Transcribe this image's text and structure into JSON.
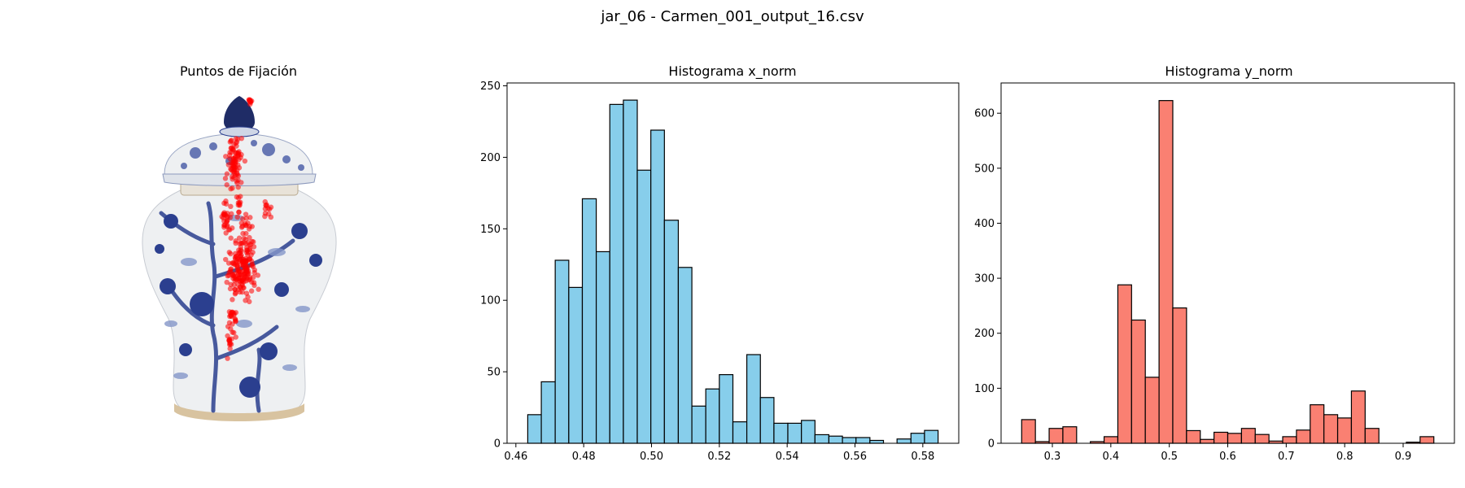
{
  "figure": {
    "suptitle": "jar_06 - Carmen_001_output_16.csv"
  },
  "fixation_panel": {
    "title": "Puntos de Fijación",
    "point_color": "#ff0000",
    "palette": {
      "porcelain": "#eef0f2",
      "cobalt": "#2b3f8f",
      "light_blue": "#8597c9"
    }
  },
  "chart_data": [
    {
      "type": "bar",
      "title": "Histograma x_norm",
      "xlabel": "",
      "ylabel": "",
      "color": "#87ceeb",
      "edgecolor": "#000000",
      "xlim": [
        0.4574,
        0.5906
      ],
      "ylim": [
        0,
        252
      ],
      "xticks": [
        0.46,
        0.48,
        0.5,
        0.52,
        0.54,
        0.56,
        0.58
      ],
      "xtick_labels": [
        "0.46",
        "0.48",
        "0.50",
        "0.52",
        "0.54",
        "0.56",
        "0.58"
      ],
      "yticks": [
        0,
        50,
        100,
        150,
        200,
        250
      ],
      "ytick_labels": [
        "0",
        "50",
        "100",
        "150",
        "200",
        "250"
      ],
      "bin_edges": [
        0.4635,
        0.4675,
        0.4716,
        0.4756,
        0.4796,
        0.4837,
        0.4877,
        0.4917,
        0.4958,
        0.4998,
        0.5038,
        0.5079,
        0.5119,
        0.516,
        0.52,
        0.524,
        0.5281,
        0.5321,
        0.5361,
        0.5402,
        0.5442,
        0.5482,
        0.5523,
        0.5563,
        0.5603,
        0.5644,
        0.5684,
        0.5724,
        0.5765,
        0.5805,
        0.5845
      ],
      "values": [
        20,
        43,
        128,
        109,
        171,
        134,
        237,
        240,
        191,
        219,
        156,
        123,
        26,
        38,
        48,
        15,
        62,
        32,
        14,
        14,
        16,
        6,
        5,
        4,
        4,
        2,
        0,
        3,
        7,
        9
      ]
    },
    {
      "type": "bar",
      "title": "Histograma y_norm",
      "xlabel": "",
      "ylabel": "",
      "color": "#fa8072",
      "edgecolor": "#000000",
      "xlim": [
        0.2123,
        0.9877
      ],
      "ylim": [
        0,
        655
      ],
      "xticks": [
        0.3,
        0.4,
        0.5,
        0.6,
        0.7,
        0.8,
        0.9
      ],
      "xtick_labels": [
        "0.3",
        "0.4",
        "0.5",
        "0.6",
        "0.7",
        "0.8",
        "0.9"
      ],
      "yticks": [
        0,
        100,
        200,
        300,
        400,
        500,
        600
      ],
      "ytick_labels": [
        "0",
        "100",
        "200",
        "300",
        "400",
        "500",
        "600"
      ],
      "bin_edges": [
        0.2475,
        0.271,
        0.2945,
        0.318,
        0.3415,
        0.365,
        0.3885,
        0.412,
        0.4355,
        0.459,
        0.4825,
        0.506,
        0.5295,
        0.553,
        0.5765,
        0.6,
        0.6235,
        0.647,
        0.6705,
        0.694,
        0.7175,
        0.741,
        0.7645,
        0.788,
        0.8115,
        0.835,
        0.8585,
        0.882,
        0.9055,
        0.929,
        0.9525
      ],
      "values": [
        43,
        3,
        27,
        30,
        0,
        3,
        12,
        288,
        224,
        120,
        623,
        246,
        23,
        7,
        20,
        18,
        27,
        16,
        4,
        12,
        24,
        70,
        52,
        46,
        95,
        27,
        0,
        0,
        2,
        12
      ]
    }
  ]
}
